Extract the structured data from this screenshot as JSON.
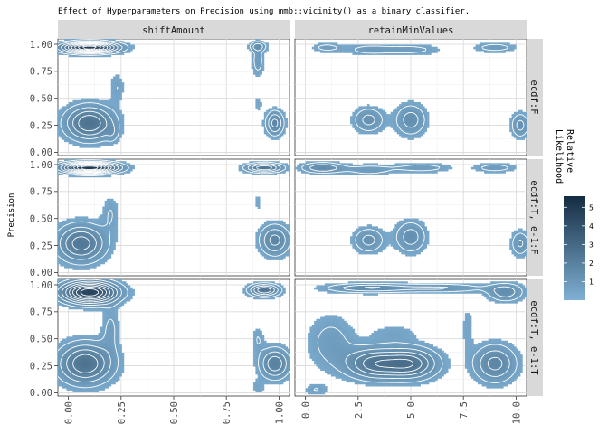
{
  "chart_data": {
    "type": "density-contour",
    "title": "Effect of Hyperparameters on Precision using mmb::vicinity() as a binary classifier.",
    "ylabel": "Precision",
    "xlabel": "",
    "columns": [
      {
        "name": "shiftAmount",
        "xlim": [
          -0.05,
          1.05
        ],
        "ticks": [
          0.0,
          0.25,
          0.5,
          0.75,
          1.0
        ],
        "tick_labels": [
          "0.00",
          "0.25",
          "0.50",
          "0.75",
          "1.00"
        ]
      },
      {
        "name": "retainMinValues",
        "xlim": [
          -0.5,
          10.5
        ],
        "ticks": [
          0,
          2.5,
          5,
          7.5,
          10
        ],
        "tick_labels": [
          "0.0",
          "2.5",
          "5.0",
          "7.5",
          "10.0"
        ]
      }
    ],
    "rows": [
      "ecdf:F",
      "ecdf:T, e-1:F",
      "ecdf:T, e-1:T"
    ],
    "ylim": [
      -0.03,
      1.05
    ],
    "yticks": [
      0,
      0.25,
      0.5,
      0.75,
      1.0
    ],
    "ytick_labels": [
      "0.00",
      "0.25",
      "0.50",
      "0.75",
      "1.00"
    ],
    "grid": true,
    "legend": {
      "title": "Relative Likelihood",
      "title_lines": [
        "Relative",
        "Likelihood"
      ],
      "position": "right",
      "ticks": [
        1,
        2,
        3,
        4,
        5
      ],
      "range": [
        0,
        5.6
      ],
      "color_low": "#7fb0d3",
      "color_high": "#142c42"
    },
    "panels": [
      [
        {
          "row": 0,
          "col": 0,
          "density": [
            {
              "x": 0.1,
              "y": 0.27,
              "sx": 0.08,
              "sy": 0.11,
              "w": 2.6
            },
            {
              "x": 0.1,
              "y": 0.97,
              "sx": 0.09,
              "sy": 0.035,
              "w": 5.0
            },
            {
              "x": 0.23,
              "y": 0.6,
              "sx": 0.025,
              "sy": 0.1,
              "w": 0.6
            },
            {
              "x": 0.21,
              "y": 0.17,
              "sx": 0.02,
              "sy": 0.06,
              "w": 0.5
            },
            {
              "x": 0.98,
              "y": 0.27,
              "sx": 0.03,
              "sy": 0.08,
              "w": 1.8
            },
            {
              "x": 0.9,
              "y": 0.85,
              "sx": 0.02,
              "sy": 0.1,
              "w": 0.9
            },
            {
              "x": 0.9,
              "y": 0.98,
              "sx": 0.03,
              "sy": 0.03,
              "w": 1.2
            },
            {
              "x": 0.9,
              "y": 0.45,
              "sx": 0.015,
              "sy": 0.06,
              "w": 0.45
            }
          ]
        },
        {
          "row": 0,
          "col": 1,
          "density": [
            {
              "x": 3.0,
              "y": 0.3,
              "sx": 0.5,
              "sy": 0.08,
              "w": 1.3
            },
            {
              "x": 5.0,
              "y": 0.3,
              "sx": 0.5,
              "sy": 0.1,
              "w": 1.4
            },
            {
              "x": 10.2,
              "y": 0.25,
              "sx": 0.3,
              "sy": 0.08,
              "w": 1.3
            },
            {
              "x": 3.0,
              "y": 0.95,
              "sx": 0.8,
              "sy": 0.035,
              "w": 0.8
            },
            {
              "x": 5.0,
              "y": 0.95,
              "sx": 1.0,
              "sy": 0.035,
              "w": 0.8
            },
            {
              "x": 1.0,
              "y": 0.97,
              "sx": 0.5,
              "sy": 0.03,
              "w": 0.8
            },
            {
              "x": 9.0,
              "y": 0.97,
              "sx": 0.7,
              "sy": 0.03,
              "w": 0.9
            }
          ]
        }
      ],
      [
        {
          "row": 1,
          "col": 0,
          "density": [
            {
              "x": 0.06,
              "y": 0.27,
              "sx": 0.08,
              "sy": 0.12,
              "w": 2.4
            },
            {
              "x": 0.1,
              "y": 0.97,
              "sx": 0.09,
              "sy": 0.035,
              "w": 5.2
            },
            {
              "x": 0.2,
              "y": 0.55,
              "sx": 0.03,
              "sy": 0.12,
              "w": 0.6
            },
            {
              "x": 0.98,
              "y": 0.3,
              "sx": 0.05,
              "sy": 0.1,
              "w": 1.8
            },
            {
              "x": 0.93,
              "y": 0.97,
              "sx": 0.06,
              "sy": 0.03,
              "w": 2.6
            },
            {
              "x": 0.9,
              "y": 0.65,
              "sx": 0.015,
              "sy": 0.06,
              "w": 0.45
            }
          ]
        },
        {
          "row": 1,
          "col": 1,
          "density": [
            {
              "x": 3.0,
              "y": 0.3,
              "sx": 0.5,
              "sy": 0.08,
              "w": 1.3
            },
            {
              "x": 5.0,
              "y": 0.33,
              "sx": 0.5,
              "sy": 0.1,
              "w": 1.4
            },
            {
              "x": 10.2,
              "y": 0.27,
              "sx": 0.3,
              "sy": 0.08,
              "w": 1.2
            },
            {
              "x": 0.8,
              "y": 0.97,
              "sx": 0.7,
              "sy": 0.035,
              "w": 1.6
            },
            {
              "x": 3.0,
              "y": 0.95,
              "sx": 0.8,
              "sy": 0.035,
              "w": 0.9
            },
            {
              "x": 5.5,
              "y": 0.97,
              "sx": 1.0,
              "sy": 0.03,
              "w": 0.9
            },
            {
              "x": 9.0,
              "y": 0.97,
              "sx": 0.7,
              "sy": 0.03,
              "w": 0.9
            }
          ]
        }
      ],
      [
        {
          "row": 2,
          "col": 0,
          "density": [
            {
              "x": 0.08,
              "y": 0.27,
              "sx": 0.09,
              "sy": 0.13,
              "w": 2.6
            },
            {
              "x": 0.1,
              "y": 0.93,
              "sx": 0.09,
              "sy": 0.07,
              "w": 4.6
            },
            {
              "x": 0.2,
              "y": 0.6,
              "sx": 0.03,
              "sy": 0.14,
              "w": 0.7
            },
            {
              "x": 0.98,
              "y": 0.27,
              "sx": 0.05,
              "sy": 0.1,
              "w": 2.0
            },
            {
              "x": 0.93,
              "y": 0.95,
              "sx": 0.05,
              "sy": 0.04,
              "w": 2.6
            },
            {
              "x": 0.9,
              "y": 0.5,
              "sx": 0.02,
              "sy": 0.08,
              "w": 0.6
            },
            {
              "x": 0.9,
              "y": 0.05,
              "sx": 0.02,
              "sy": 0.05,
              "w": 0.5
            }
          ]
        },
        {
          "row": 2,
          "col": 1,
          "density": [
            {
              "x": 3.2,
              "y": 0.27,
              "sx": 0.9,
              "sy": 0.1,
              "w": 2.2
            },
            {
              "x": 5.0,
              "y": 0.27,
              "sx": 0.9,
              "sy": 0.1,
              "w": 2.4
            },
            {
              "x": 9.0,
              "y": 0.27,
              "sx": 0.7,
              "sy": 0.12,
              "w": 1.8
            },
            {
              "x": 1.2,
              "y": 0.47,
              "sx": 0.8,
              "sy": 0.18,
              "w": 0.8
            },
            {
              "x": 3.0,
              "y": 0.97,
              "sx": 1.4,
              "sy": 0.03,
              "w": 1.6
            },
            {
              "x": 6.5,
              "y": 0.97,
              "sx": 1.5,
              "sy": 0.03,
              "w": 1.1
            },
            {
              "x": 9.5,
              "y": 0.93,
              "sx": 0.6,
              "sy": 0.06,
              "w": 1.4
            },
            {
              "x": 7.7,
              "y": 0.6,
              "sx": 0.2,
              "sy": 0.15,
              "w": 0.5
            },
            {
              "x": 4.2,
              "y": 0.55,
              "sx": 0.8,
              "sy": 0.06,
              "w": 0.5
            },
            {
              "x": 0.5,
              "y": 0.03,
              "sx": 0.4,
              "sy": 0.04,
              "w": 0.6
            }
          ]
        }
      ]
    ]
  }
}
